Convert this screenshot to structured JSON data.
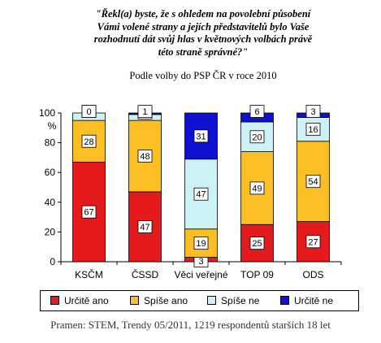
{
  "chart_data": {
    "type": "bar",
    "stacked": true,
    "title": "\"Řekl(a) byste, že s ohledem na povolební působení Vámi volené strany a jejích představitelů bylo Vaše rozhodnutí dát svůj hlas v květnových volbách právě této straně správné?\"",
    "title_lines": [
      "\"Řekl(a) byste, že s ohledem na povolební působení",
      "Vámi volené strany a jejích představitelů bylo Vaše",
      "rozhodnutí dát svůj hlas v květnových volbách právě",
      "této straně správné?\""
    ],
    "subtitle": "Podle volby do PSP ČR v roce 2010",
    "ylabel": "%",
    "ylim": [
      0,
      100
    ],
    "yticks": [
      0,
      20,
      40,
      60,
      80,
      100
    ],
    "categories": [
      "KSČM",
      "ČSSD",
      "Věci veřejné",
      "TOP 09",
      "ODS"
    ],
    "series": [
      {
        "name": "Určitě ano",
        "color": "#e41a1c",
        "values": [
          67,
          47,
          3,
          25,
          27
        ]
      },
      {
        "name": "Spíše ano",
        "color": "#fbbf24",
        "values": [
          28,
          48,
          19,
          49,
          54
        ]
      },
      {
        "name": "Spíše ne",
        "color": "#ccf2f7",
        "values": [
          5,
          4,
          47,
          20,
          16
        ]
      },
      {
        "name": "Určitě ne",
        "color": "#1010d0",
        "values": [
          0,
          1,
          31,
          6,
          3
        ]
      }
    ],
    "legend_position": "bottom",
    "grid": false
  },
  "source": "Pramen: STEM, Trendy 05/2011, 1219 respondentů starších 18 let"
}
